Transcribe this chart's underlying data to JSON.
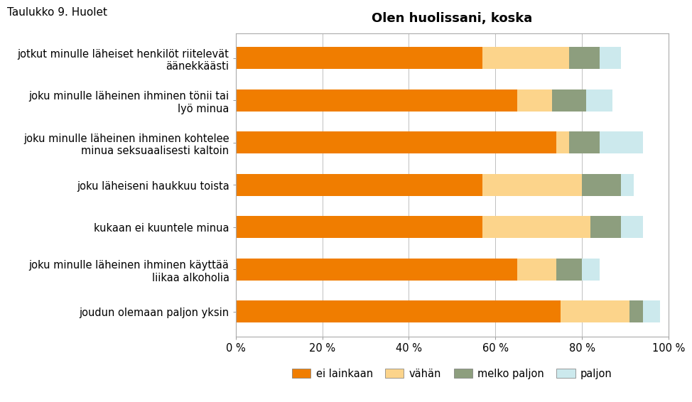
{
  "title": "Olen huolissani, koska",
  "categories": [
    "jotkut minulle läheiset henkilöt riitelevät\näänekkäästi",
    "joku minulle läheinen ihminen tönii tai\nlyö minua",
    "joku minulle läheinen ihminen kohtelee\nminua seksuaalisesti kaltoin",
    "joku läheiseni haukkuu toista",
    "kukaan ei kuuntele minua",
    "joku minulle läheinen ihminen käyttää\nliikaa alkoholia",
    "joudun olemaan paljon yksin"
  ],
  "series": {
    "ei lainkaan": [
      57,
      65,
      74,
      57,
      57,
      65,
      75
    ],
    "vähän": [
      20,
      8,
      3,
      23,
      25,
      9,
      16
    ],
    "melko paljon": [
      7,
      8,
      7,
      9,
      7,
      6,
      3
    ],
    "paljon": [
      5,
      6,
      10,
      3,
      5,
      4,
      4
    ]
  },
  "colors": {
    "ei lainkaan": "#f07d00",
    "vähän": "#fcd48b",
    "melko paljon": "#8d9e7e",
    "paljon": "#cce9ed"
  },
  "legend_order": [
    "ei lainkaan",
    "vähän",
    "melko paljon",
    "paljon"
  ],
  "xlim": [
    0,
    100
  ],
  "xticks": [
    0,
    20,
    40,
    60,
    80,
    100
  ],
  "xticklabels": [
    "0 %",
    "20 %",
    "40 %",
    "60 %",
    "80 %",
    "100 %"
  ],
  "title_fontsize": 13,
  "label_fontsize": 10.5,
  "tick_fontsize": 10.5,
  "legend_fontsize": 10.5,
  "bar_height": 0.52,
  "figure_width": 9.6,
  "figure_height": 14.97,
  "background_color": "#ffffff",
  "grid_color": "#c0c0c0",
  "frame_color": "#999999",
  "chart_box_color": "#ffffff",
  "chart_border_color": "#aaaaaa"
}
